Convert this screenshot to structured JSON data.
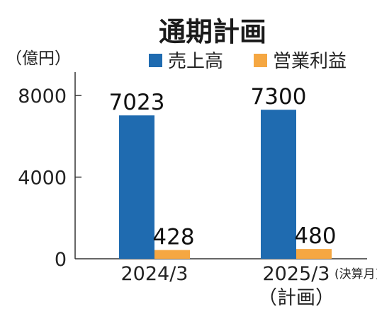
{
  "chart_data": {
    "type": "bar",
    "title": "通期計画",
    "ylabel": "（億円）",
    "ylim": [
      0,
      8000
    ],
    "yticks": [
      0,
      4000,
      8000
    ],
    "categories": [
      {
        "label": "2024/3",
        "note": "",
        "sub": ""
      },
      {
        "label": "2025/3",
        "note": "(決算月)",
        "sub": "（計画）"
      }
    ],
    "series": [
      {
        "name": "売上高",
        "color": "#1f6bb0",
        "values": [
          7023,
          7300
        ]
      },
      {
        "name": "営業利益",
        "color": "#f5a742",
        "values": [
          428,
          480
        ]
      }
    ],
    "legend_position": "top-right",
    "grid": false
  }
}
